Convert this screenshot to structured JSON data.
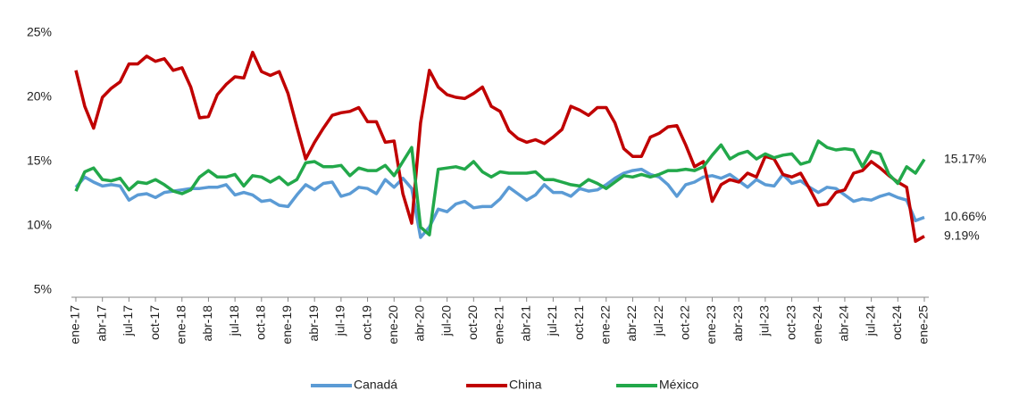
{
  "chart_data": {
    "type": "line",
    "categories": [
      "ene-17",
      null,
      null,
      "abr-17",
      null,
      null,
      "jul-17",
      null,
      null,
      "oct-17",
      null,
      null,
      "ene-18",
      null,
      null,
      "abr-18",
      null,
      null,
      "jul-18",
      null,
      null,
      "oct-18",
      null,
      null,
      "ene-19",
      null,
      null,
      "abr-19",
      null,
      null,
      "jul-19",
      null,
      null,
      "oct-19",
      null,
      null,
      "ene-20",
      null,
      null,
      "abr-20",
      null,
      null,
      "jul-20",
      null,
      null,
      "oct-20",
      null,
      null,
      "ene-21",
      null,
      null,
      "abr-21",
      null,
      null,
      "jul-21",
      null,
      null,
      "oct-21",
      null,
      null,
      "ene-22",
      null,
      null,
      "abr-22",
      null,
      null,
      "jul-22",
      null,
      null,
      "oct-22",
      null,
      null,
      "ene-23",
      null,
      null,
      "abr-23",
      null,
      null,
      "jul-23",
      null,
      null,
      "oct-23",
      null,
      null,
      "ene-24",
      null,
      null,
      "abr-24",
      null,
      null,
      "jul-24",
      null,
      null,
      "oct-24",
      null,
      null,
      "ene-25"
    ],
    "series": [
      {
        "name": "Canadá",
        "color": "#5b9bd5",
        "values": [
          13.0,
          13.8,
          13.4,
          13.1,
          13.2,
          13.1,
          12.0,
          12.4,
          12.5,
          12.2,
          12.6,
          12.7,
          12.8,
          12.9,
          12.9,
          13.0,
          13.0,
          13.2,
          12.4,
          12.6,
          12.4,
          11.9,
          12.0,
          11.6,
          11.5,
          12.4,
          13.2,
          12.8,
          13.3,
          13.4,
          12.3,
          12.5,
          13.0,
          12.9,
          12.5,
          13.6,
          13.0,
          13.7,
          12.9,
          9.1,
          9.9,
          11.3,
          11.1,
          11.7,
          11.9,
          11.4,
          11.5,
          11.5,
          12.1,
          13.0,
          12.5,
          12.0,
          12.4,
          13.2,
          12.6,
          12.6,
          12.3,
          12.9,
          12.7,
          12.8,
          13.2,
          13.7,
          14.1,
          14.3,
          14.4,
          14.0,
          13.8,
          13.2,
          12.3,
          13.2,
          13.4,
          13.8,
          13.9,
          13.7,
          14.0,
          13.5,
          13.0,
          13.6,
          13.2,
          13.1,
          14.0,
          13.3,
          13.5,
          13.0,
          12.6,
          13.0,
          12.9,
          12.4,
          11.9,
          12.1,
          12.0,
          12.3,
          12.5,
          12.2,
          12.0,
          10.4,
          10.66
        ],
        "value_labels": [
          null,
          null,
          null,
          null,
          null,
          null,
          null,
          null,
          null,
          null,
          null,
          null,
          null,
          null,
          null,
          null,
          null,
          null,
          null,
          null,
          null,
          null,
          null,
          null,
          null,
          null,
          null,
          null,
          null,
          null,
          null,
          null,
          null,
          null,
          null,
          null,
          null,
          null,
          null,
          null,
          null,
          null,
          null,
          null,
          null,
          null,
          null,
          null,
          null,
          null,
          null,
          null,
          null,
          null,
          null,
          null,
          null,
          null,
          null,
          null,
          null,
          null,
          null,
          null,
          null,
          null,
          null,
          null,
          null,
          null,
          null,
          null,
          null,
          null,
          null,
          null,
          null,
          null,
          null,
          null,
          null,
          null,
          null,
          null,
          null,
          null,
          null,
          null,
          null,
          null,
          null,
          null,
          null,
          null,
          null,
          null,
          "10.66%"
        ]
      },
      {
        "name": "China",
        "color": "#c00000",
        "values": [
          22.1,
          19.3,
          17.6,
          20.0,
          20.7,
          21.2,
          22.6,
          22.6,
          23.2,
          22.8,
          23.0,
          22.1,
          22.3,
          20.8,
          18.4,
          18.5,
          20.2,
          21.0,
          21.6,
          21.5,
          23.5,
          22.0,
          21.7,
          22.0,
          20.3,
          17.7,
          15.2,
          16.5,
          17.6,
          18.6,
          18.8,
          18.9,
          19.2,
          18.1,
          18.1,
          16.5,
          16.6,
          12.5,
          10.2,
          18.0,
          22.1,
          20.8,
          20.2,
          20.0,
          19.9,
          20.3,
          20.8,
          19.3,
          18.9,
          17.4,
          16.8,
          16.5,
          16.7,
          16.4,
          16.9,
          17.5,
          19.3,
          19.0,
          18.6,
          19.2,
          19.2,
          18.0,
          16.0,
          15.4,
          15.4,
          16.9,
          17.2,
          17.7,
          17.8,
          16.3,
          14.6,
          15.0,
          11.9,
          13.2,
          13.6,
          13.4,
          14.1,
          13.8,
          15.4,
          15.2,
          14.0,
          13.8,
          14.1,
          12.9,
          11.6,
          11.7,
          12.6,
          12.8,
          14.1,
          14.3,
          15.0,
          14.5,
          13.9,
          13.4,
          13.0,
          8.8,
          9.19
        ],
        "value_labels": [
          null,
          null,
          null,
          null,
          null,
          null,
          null,
          null,
          null,
          null,
          null,
          null,
          null,
          null,
          null,
          null,
          null,
          null,
          null,
          null,
          null,
          null,
          null,
          null,
          null,
          null,
          null,
          null,
          null,
          null,
          null,
          null,
          null,
          null,
          null,
          null,
          null,
          null,
          null,
          null,
          null,
          null,
          null,
          null,
          null,
          null,
          null,
          null,
          null,
          null,
          null,
          null,
          null,
          null,
          null,
          null,
          null,
          null,
          null,
          null,
          null,
          null,
          null,
          null,
          null,
          null,
          null,
          null,
          null,
          null,
          null,
          null,
          null,
          null,
          null,
          null,
          null,
          null,
          null,
          null,
          null,
          null,
          null,
          null,
          null,
          null,
          null,
          null,
          null,
          null,
          null,
          null,
          null,
          null,
          null,
          null,
          "9.19%"
        ]
      },
      {
        "name": "México",
        "color": "#22a84a",
        "values": [
          12.7,
          14.2,
          14.5,
          13.6,
          13.5,
          13.7,
          12.8,
          13.4,
          13.3,
          13.6,
          13.2,
          12.7,
          12.5,
          12.8,
          13.8,
          14.3,
          13.8,
          13.8,
          14.0,
          13.1,
          13.9,
          13.8,
          13.4,
          13.8,
          13.2,
          13.6,
          14.9,
          15.0,
          14.6,
          14.6,
          14.7,
          13.9,
          14.5,
          14.3,
          14.3,
          14.7,
          13.9,
          15.0,
          16.1,
          9.9,
          9.3,
          14.4,
          14.5,
          14.6,
          14.4,
          15.0,
          14.2,
          13.8,
          14.2,
          14.1,
          14.1,
          14.1,
          14.2,
          13.6,
          13.6,
          13.4,
          13.2,
          13.1,
          13.6,
          13.3,
          12.9,
          13.4,
          13.9,
          13.8,
          14.0,
          13.8,
          14.0,
          14.3,
          14.3,
          14.4,
          14.3,
          14.6,
          15.5,
          16.3,
          15.2,
          15.6,
          15.8,
          15.2,
          15.6,
          15.3,
          15.5,
          15.6,
          14.8,
          15.0,
          16.6,
          16.1,
          15.9,
          16.0,
          15.9,
          14.6,
          15.8,
          15.6,
          14.0,
          13.3,
          14.6,
          14.1,
          15.17
        ],
        "value_labels": [
          null,
          null,
          null,
          null,
          null,
          null,
          null,
          null,
          null,
          null,
          null,
          null,
          null,
          null,
          null,
          null,
          null,
          null,
          null,
          null,
          null,
          null,
          null,
          null,
          null,
          null,
          null,
          null,
          null,
          null,
          null,
          null,
          null,
          null,
          null,
          null,
          null,
          null,
          null,
          null,
          null,
          null,
          null,
          null,
          null,
          null,
          null,
          null,
          null,
          null,
          null,
          null,
          null,
          null,
          null,
          null,
          null,
          null,
          null,
          null,
          null,
          null,
          null,
          null,
          null,
          null,
          null,
          null,
          null,
          null,
          null,
          null,
          null,
          null,
          null,
          null,
          null,
          null,
          null,
          null,
          null,
          null,
          null,
          null,
          null,
          null,
          null,
          null,
          null,
          null,
          null,
          null,
          null,
          null,
          null,
          null,
          "15.17%"
        ]
      }
    ],
    "ylim": [
      5,
      25
    ],
    "yticks": [
      {
        "value": 5,
        "label": "5%"
      },
      {
        "value": 10,
        "label": "10%"
      },
      {
        "value": 15,
        "label": "15%"
      },
      {
        "value": 20,
        "label": "20%"
      },
      {
        "value": 25,
        "label": "25%"
      }
    ],
    "grid": false,
    "legend": "bottom"
  }
}
